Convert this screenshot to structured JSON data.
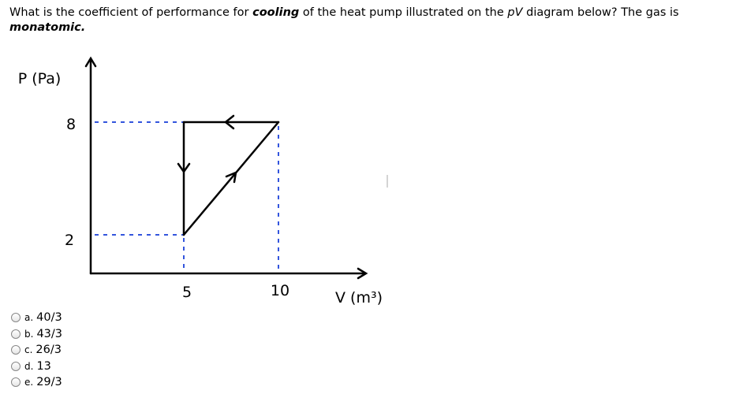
{
  "question": {
    "parts": [
      "What is the coefficient of performance for ",
      "cooling",
      " of the heat pump illustrated on the ",
      "pV",
      " diagram below? The gas is",
      "monatomic."
    ]
  },
  "diagram": {
    "y_label": "P (Pa)",
    "y_marks": [
      "8",
      "2"
    ],
    "x_marks": [
      "5",
      "10"
    ],
    "x_label": "V (m³)"
  },
  "options": [
    {
      "letter": "a.",
      "text": "40/3"
    },
    {
      "letter": "b.",
      "text": "43/3"
    },
    {
      "letter": "c.",
      "text": "26/3"
    },
    {
      "letter": "d.",
      "text": "13"
    },
    {
      "letter": "e.",
      "text": "29/3"
    }
  ]
}
